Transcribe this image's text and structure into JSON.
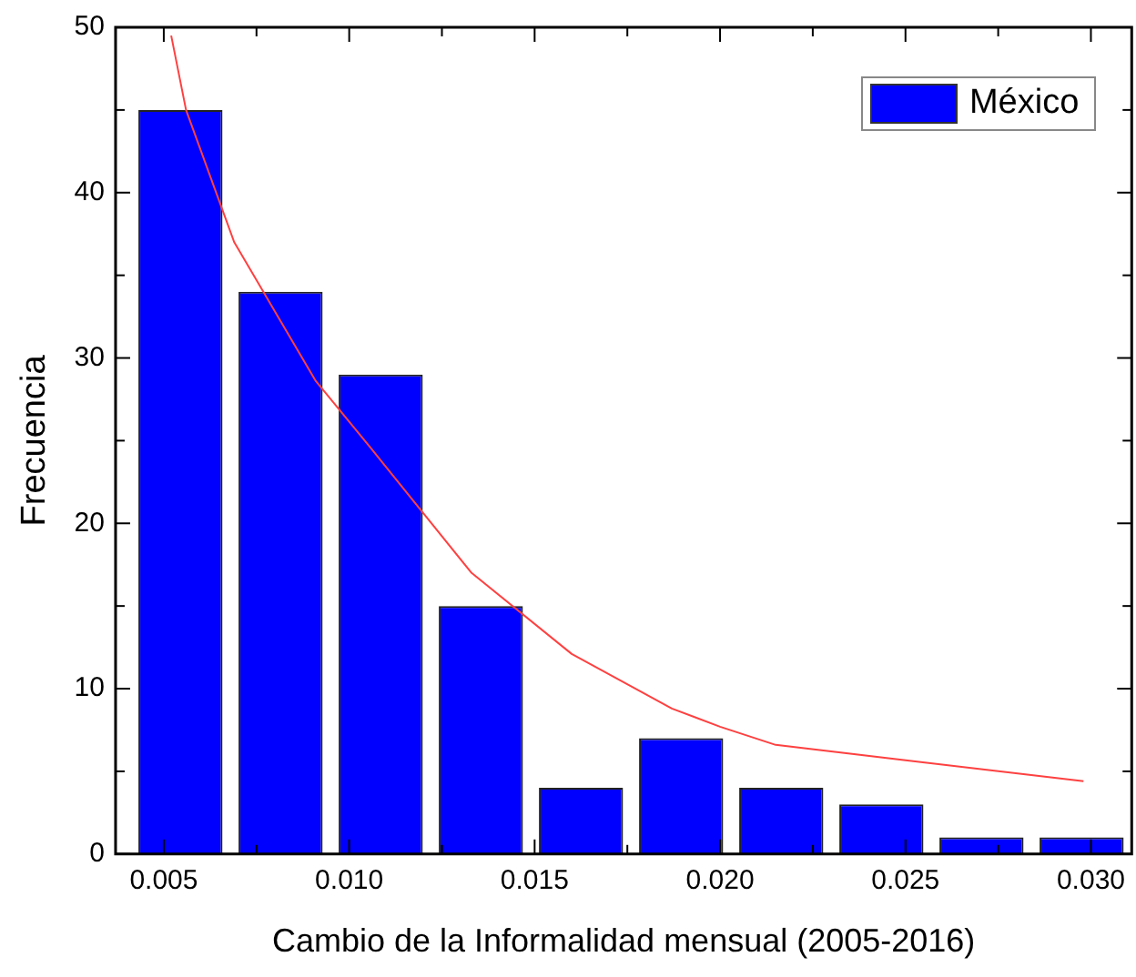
{
  "chart_data": {
    "type": "histogram",
    "xlabel": "Cambio de la Informalidad mensual (2005-2016)",
    "ylabel": "Frecuencia",
    "bins": [
      0.0041,
      0.0068,
      0.0095,
      0.0122,
      0.0149,
      0.0176,
      0.0203,
      0.023,
      0.0257,
      0.0284,
      0.0311
    ],
    "series": [
      {
        "name": "México",
        "color": "#0000ff",
        "values": [
          45,
          34,
          29,
          15,
          4,
          7,
          4,
          3,
          1,
          1
        ]
      },
      {
        "type": "line",
        "color": "#ff4040",
        "x": [
          0.0052,
          0.0056,
          0.0069,
          0.0091,
          0.0106,
          0.0133,
          0.016,
          0.0187,
          0.02,
          0.0215,
          0.0249,
          0.0298
        ],
        "values": [
          49.5,
          45,
          37,
          28.6,
          24.5,
          17,
          12.1,
          8.8,
          7.7,
          6.6,
          5.7,
          4.4
        ]
      }
    ],
    "xlim": [
      0.0037,
      0.0311
    ],
    "xticks": [
      0.005,
      {
        "value": 0.01,
        "label": "0.010"
      },
      0.015,
      {
        "value": 0.02,
        "label": "0.020"
      },
      0.025,
      {
        "value": 0.03,
        "label": "0.030"
      }
    ],
    "ylim": [
      0,
      50
    ],
    "yticks": [
      0,
      10,
      20,
      30,
      40,
      50
    ],
    "legend": "top right",
    "grid": false
  }
}
